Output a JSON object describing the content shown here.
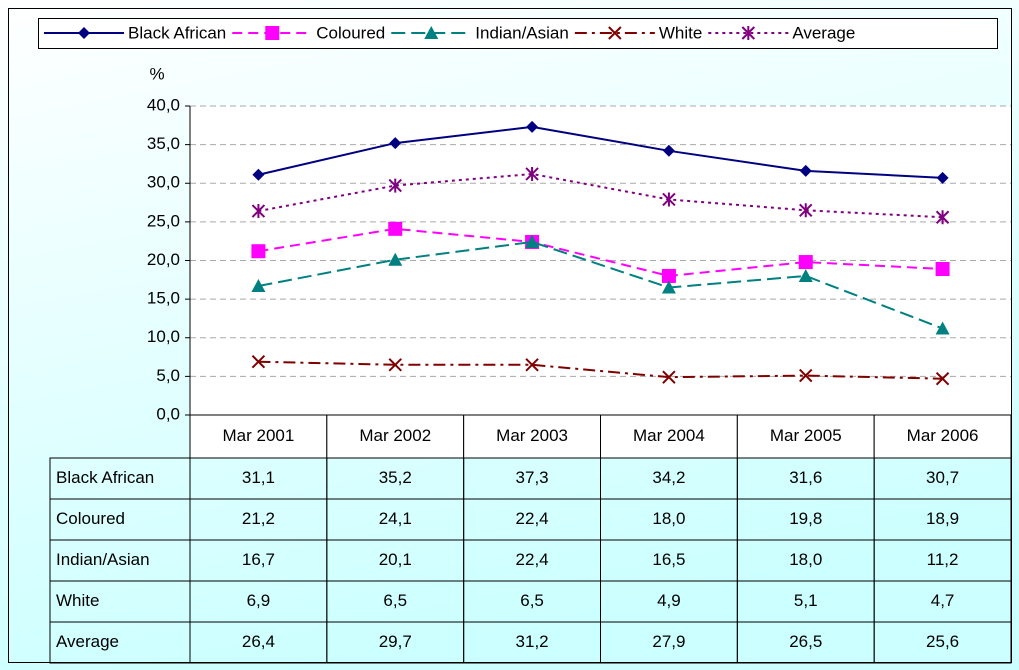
{
  "chart_data": {
    "type": "line",
    "y_label": "%",
    "categories": [
      "Mar 2001",
      "Mar 2002",
      "Mar 2003",
      "Mar 2004",
      "Mar 2005",
      "Mar 2006"
    ],
    "series": [
      {
        "name": "Black African",
        "color": "#000080",
        "dash": "solid",
        "marker": "diamond",
        "values": [
          31.1,
          35.2,
          37.3,
          34.2,
          31.6,
          30.7
        ],
        "value_labels": [
          "31,1",
          "35,2",
          "37,3",
          "34,2",
          "31,6",
          "30,7"
        ]
      },
      {
        "name": "Coloured",
        "color": "#ff00ff",
        "dash": "dashed",
        "marker": "square",
        "values": [
          21.2,
          24.1,
          22.4,
          18.0,
          19.8,
          18.9
        ],
        "value_labels": [
          "21,2",
          "24,1",
          "22,4",
          "18,0",
          "19,8",
          "18,9"
        ]
      },
      {
        "name": "Indian/Asian",
        "color": "#008080",
        "dash": "longdash",
        "marker": "triangle",
        "values": [
          16.7,
          20.1,
          22.4,
          16.5,
          18.0,
          11.2
        ],
        "value_labels": [
          "16,7",
          "20,1",
          "22,4",
          "16,5",
          "18,0",
          "11,2"
        ]
      },
      {
        "name": "White",
        "color": "#800000",
        "dash": "dashdot",
        "marker": "cross",
        "values": [
          6.9,
          6.5,
          6.5,
          4.9,
          5.1,
          4.7
        ],
        "value_labels": [
          "6,9",
          "6,5",
          "6,5",
          "4,9",
          "5,1",
          "4,7"
        ]
      },
      {
        "name": "Average",
        "color": "#800080",
        "dash": "dotted",
        "marker": "asterisk",
        "values": [
          26.4,
          29.7,
          31.2,
          27.9,
          26.5,
          25.6
        ],
        "value_labels": [
          "26,4",
          "29,7",
          "31,2",
          "27,9",
          "26,5",
          "25,6"
        ]
      }
    ],
    "ylim": [
      0,
      40
    ],
    "yticks": [
      {
        "value": 0,
        "label": "0,0"
      },
      {
        "value": 5,
        "label": "5,0"
      },
      {
        "value": 10,
        "label": "10,0"
      },
      {
        "value": 15,
        "label": "15,0"
      },
      {
        "value": 20,
        "label": "20,0"
      },
      {
        "value": 25,
        "label": "25,0"
      },
      {
        "value": 30,
        "label": "30,0"
      },
      {
        "value": 35,
        "label": "35,0"
      },
      {
        "value": 40,
        "label": "40,0"
      }
    ],
    "grid": true,
    "legend": "top",
    "data_table": true
  }
}
